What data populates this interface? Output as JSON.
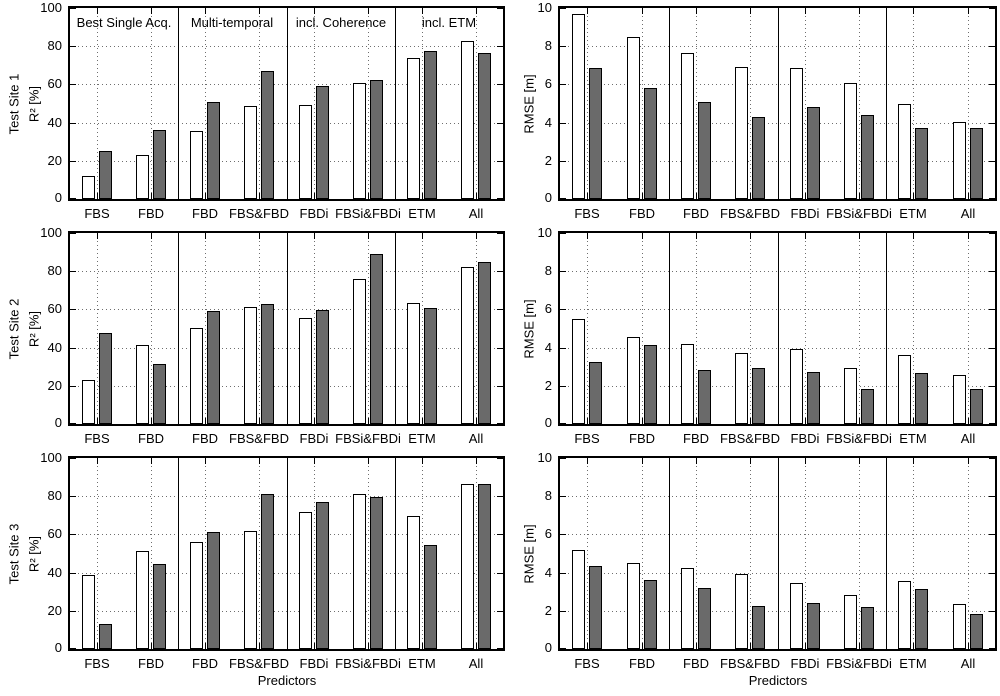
{
  "figure": {
    "row_labels": [
      "Test Site 1",
      "Test Site 2",
      "Test Site 3"
    ],
    "left_axis_label": "R² [%]",
    "right_axis_label": "RMSE [m]",
    "x_axis_label": "Predictors",
    "categories": [
      "FBS",
      "FBD",
      "FBD",
      "FBS&FBD",
      "FBDi",
      "FBSi&FBDi",
      "ETM",
      "All"
    ],
    "group_labels": [
      "Best Single Acq.",
      "Multi-temporal",
      "incl. Coherence",
      "incl. ETM"
    ],
    "colors": {
      "bar_white": "#ffffff",
      "bar_gray": "#6a6a6a",
      "axis": "#000000",
      "grid_dot": "#6e6e6e"
    }
  },
  "chart_data": [
    {
      "id": "test-site-1-r2",
      "type": "bar",
      "position": {
        "row": 0,
        "col": 0
      },
      "ylabel_lines": [
        "Test Site 1",
        "R² [%]"
      ],
      "ylim": [
        0,
        100
      ],
      "yticks": [
        0,
        20,
        40,
        60,
        80,
        100
      ],
      "grid": "dotted",
      "categories": [
        "FBS",
        "FBD",
        "FBD",
        "FBS&FBD",
        "FBDi",
        "FBSi&FBDi",
        "ETM",
        "All"
      ],
      "group_dividers_after_index": [
        1,
        3,
        5
      ],
      "group_labels": [
        "Best Single Acq.",
        "Multi-temporal",
        "incl. Coherence",
        "incl. ETM"
      ],
      "series": [
        {
          "name": "white",
          "color": "#ffffff",
          "values": [
            12,
            23,
            35.5,
            48.5,
            49,
            60.5,
            74,
            82.5
          ]
        },
        {
          "name": "gray",
          "color": "#6a6a6a",
          "values": [
            25,
            36,
            51,
            67,
            59,
            62.5,
            77.5,
            76.5
          ]
        }
      ]
    },
    {
      "id": "test-site-1-rmse",
      "type": "bar",
      "position": {
        "row": 0,
        "col": 1
      },
      "ylabel_lines": [
        "RMSE [m]"
      ],
      "ylim": [
        0,
        10
      ],
      "yticks": [
        0,
        2,
        4,
        6,
        8,
        10
      ],
      "grid": "dotted",
      "categories": [
        "FBS",
        "FBD",
        "FBD",
        "FBS&FBD",
        "FBDi",
        "FBSi&FBDi",
        "ETM",
        "All"
      ],
      "group_dividers_after_index": [
        1,
        3,
        5
      ],
      "series": [
        {
          "name": "white",
          "color": "#ffffff",
          "values": [
            9.7,
            8.5,
            7.65,
            6.9,
            6.85,
            6.05,
            4.95,
            4.05
          ]
        },
        {
          "name": "gray",
          "color": "#6a6a6a",
          "values": [
            6.85,
            5.8,
            5.1,
            4.3,
            4.8,
            4.4,
            3.7,
            3.7
          ]
        }
      ]
    },
    {
      "id": "test-site-2-r2",
      "type": "bar",
      "position": {
        "row": 1,
        "col": 0
      },
      "ylabel_lines": [
        "Test Site 2",
        "R² [%]"
      ],
      "ylim": [
        0,
        100
      ],
      "yticks": [
        0,
        20,
        40,
        60,
        80,
        100
      ],
      "grid": "dotted",
      "categories": [
        "FBS",
        "FBD",
        "FBD",
        "FBS&FBD",
        "FBDi",
        "FBSi&FBDi",
        "ETM",
        "All"
      ],
      "group_dividers_after_index": [
        1,
        3,
        5
      ],
      "series": [
        {
          "name": "white",
          "color": "#ffffff",
          "values": [
            23,
            41.5,
            50.5,
            61,
            55.5,
            76,
            63.5,
            82
          ]
        },
        {
          "name": "gray",
          "color": "#6a6a6a",
          "values": [
            47.5,
            31.5,
            59,
            63,
            59.5,
            89,
            60.5,
            85
          ]
        }
      ]
    },
    {
      "id": "test-site-2-rmse",
      "type": "bar",
      "position": {
        "row": 1,
        "col": 1
      },
      "ylabel_lines": [
        "RMSE [m]"
      ],
      "ylim": [
        0,
        10
      ],
      "yticks": [
        0,
        2,
        4,
        6,
        8,
        10
      ],
      "grid": "dotted",
      "categories": [
        "FBS",
        "FBD",
        "FBD",
        "FBS&FBD",
        "FBDi",
        "FBSi&FBDi",
        "ETM",
        "All"
      ],
      "group_dividers_after_index": [
        1,
        3,
        5
      ],
      "series": [
        {
          "name": "white",
          "color": "#ffffff",
          "values": [
            5.5,
            4.55,
            4.2,
            3.7,
            3.95,
            2.95,
            3.6,
            2.55
          ]
        },
        {
          "name": "gray",
          "color": "#6a6a6a",
          "values": [
            3.25,
            4.15,
            2.85,
            2.95,
            2.7,
            1.85,
            2.65,
            1.85
          ]
        }
      ]
    },
    {
      "id": "test-site-3-r2",
      "type": "bar",
      "position": {
        "row": 2,
        "col": 0
      },
      "ylabel_lines": [
        "Test Site 3",
        "R² [%]"
      ],
      "xlabel": "Predictors",
      "ylim": [
        0,
        100
      ],
      "yticks": [
        0,
        20,
        40,
        60,
        80,
        100
      ],
      "grid": "dotted",
      "categories": [
        "FBS",
        "FBD",
        "FBD",
        "FBS&FBD",
        "FBDi",
        "FBSi&FBDi",
        "ETM",
        "All"
      ],
      "group_dividers_after_index": [
        1,
        3,
        5
      ],
      "series": [
        {
          "name": "white",
          "color": "#ffffff",
          "values": [
            39,
            51.5,
            56,
            62,
            71.5,
            81,
            69.5,
            86.5
          ]
        },
        {
          "name": "gray",
          "color": "#6a6a6a",
          "values": [
            13,
            44.5,
            61.5,
            81,
            77,
            79.5,
            54.5,
            86.5
          ]
        }
      ]
    },
    {
      "id": "test-site-3-rmse",
      "type": "bar",
      "position": {
        "row": 2,
        "col": 1
      },
      "ylabel_lines": [
        "RMSE [m]"
      ],
      "xlabel": "Predictors",
      "ylim": [
        0,
        10
      ],
      "yticks": [
        0,
        2,
        4,
        6,
        8,
        10
      ],
      "grid": "dotted",
      "categories": [
        "FBS",
        "FBD",
        "FBD",
        "FBS&FBD",
        "FBDi",
        "FBSi&FBDi",
        "ETM",
        "All"
      ],
      "group_dividers_after_index": [
        1,
        3,
        5
      ],
      "series": [
        {
          "name": "white",
          "color": "#ffffff",
          "values": [
            5.2,
            4.5,
            4.25,
            3.95,
            3.45,
            2.85,
            3.55,
            2.35
          ]
        },
        {
          "name": "gray",
          "color": "#6a6a6a",
          "values": [
            4.35,
            3.6,
            3.2,
            2.25,
            2.4,
            2.2,
            3.15,
            1.85
          ]
        }
      ]
    }
  ]
}
